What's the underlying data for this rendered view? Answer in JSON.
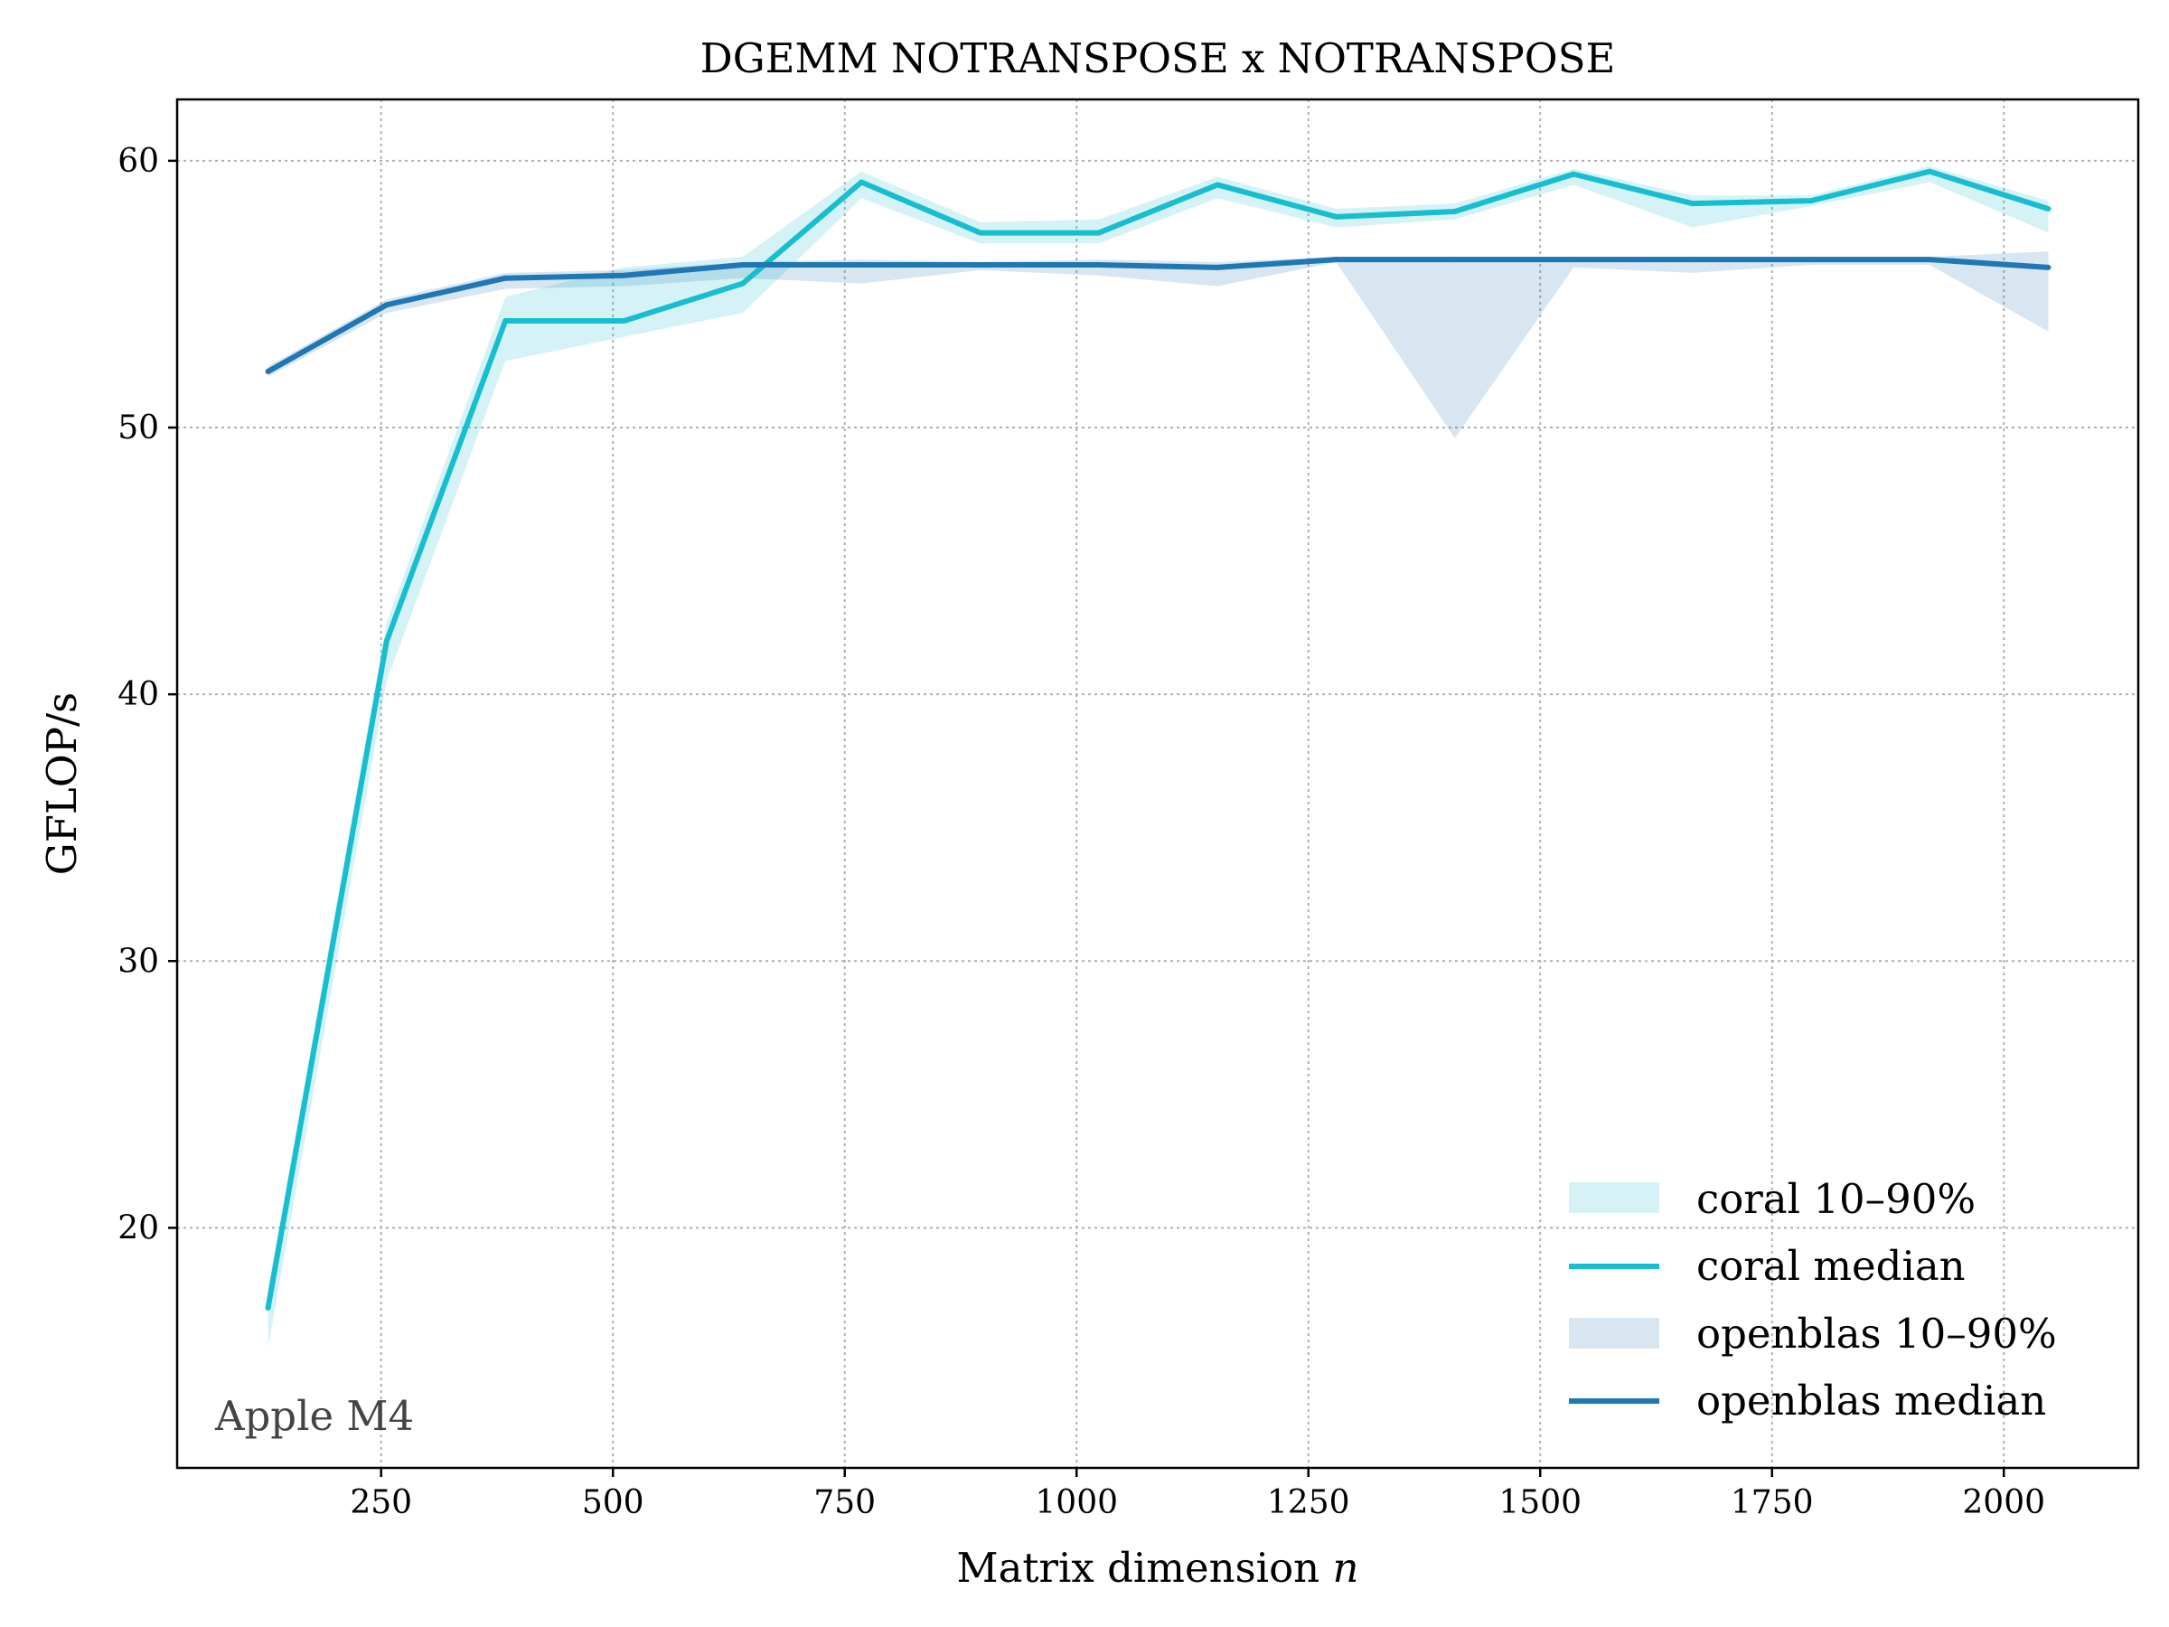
{
  "chart_data": {
    "type": "line",
    "title": "DGEMM NOTRANSPOSE x NOTRANSPOSE",
    "xlabel": "Matrix dimension",
    "xlabel_var": "n",
    "ylabel": "GFLOP/s",
    "annotation": "Apple M4",
    "xlim": [
      30,
      2145
    ],
    "ylim": [
      11,
      62.3
    ],
    "xticks": [
      250,
      500,
      750,
      1000,
      1250,
      1500,
      1750,
      2000
    ],
    "yticks": [
      20,
      30,
      40,
      50,
      60
    ],
    "grid": true,
    "legend_position": "lower-right",
    "x": [
      128,
      256,
      384,
      512,
      640,
      768,
      896,
      1024,
      1152,
      1280,
      1408,
      1536,
      1664,
      1792,
      1920,
      2048
    ],
    "series": [
      {
        "name": "coral median",
        "color": "#17becf",
        "values": [
          17.0,
          42.0,
          54.0,
          54.0,
          55.4,
          59.2,
          57.3,
          57.3,
          59.1,
          57.9,
          58.1,
          59.5,
          58.4,
          58.5,
          59.6,
          58.2
        ]
      },
      {
        "name": "openblas median",
        "color": "#1f77b4",
        "values": [
          52.1,
          54.6,
          55.6,
          55.7,
          56.1,
          56.1,
          56.1,
          56.1,
          56.0,
          56.3,
          56.3,
          56.3,
          56.3,
          56.3,
          56.3,
          56.0
        ]
      }
    ],
    "bands": [
      {
        "name": "coral 10–90%",
        "color": "#17becf",
        "low": [
          15.5,
          40.5,
          52.5,
          53.4,
          54.3,
          58.6,
          56.9,
          56.9,
          58.6,
          57.5,
          57.8,
          59.1,
          57.5,
          58.3,
          59.2,
          57.3
        ],
        "high": [
          17.7,
          42.7,
          54.9,
          56.0,
          56.4,
          59.6,
          57.7,
          57.8,
          59.4,
          58.2,
          58.4,
          59.7,
          58.7,
          58.7,
          59.8,
          58.5
        ]
      },
      {
        "name": "openblas 10–90%",
        "color": "#1f77b4",
        "low": [
          51.9,
          54.3,
          55.2,
          55.3,
          55.6,
          55.4,
          55.9,
          55.7,
          55.3,
          56.2,
          49.6,
          56.0,
          55.8,
          56.1,
          56.1,
          53.6
        ],
        "high": [
          52.3,
          54.8,
          55.8,
          55.9,
          56.2,
          56.3,
          56.2,
          56.3,
          56.2,
          56.4,
          56.4,
          56.4,
          56.4,
          56.4,
          56.4,
          56.6
        ]
      }
    ]
  }
}
